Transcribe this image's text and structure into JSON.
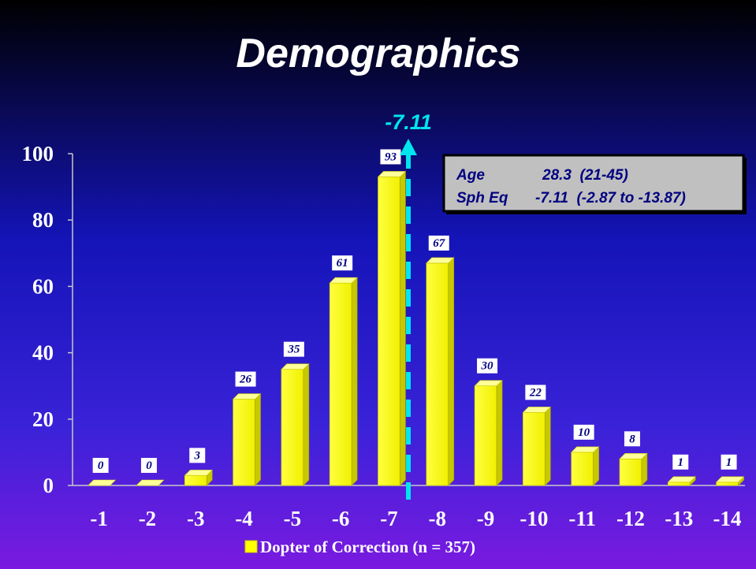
{
  "slide": {
    "title": "Demographics"
  },
  "colors": {
    "bg_top": "#000000",
    "bg_mid": "#1a1ad0",
    "bg_bottom": "#7a1ae0",
    "bar_front": "#ffff00",
    "bar_side": "#c8c800",
    "bar_top": "#ffff99",
    "marker": "#00e5ee",
    "label_text": "#000080"
  },
  "chart_data": {
    "type": "bar",
    "categories": [
      "-1",
      "-2",
      "-3",
      "-4",
      "-5",
      "-6",
      "-7",
      "-8",
      "-9",
      "-10",
      "-11",
      "-12",
      "-13",
      "-14"
    ],
    "series": [
      {
        "name": "Dopter of Correction (n = 357)",
        "values": [
          0,
          0,
          3,
          26,
          35,
          61,
          93,
          67,
          30,
          22,
          10,
          8,
          1,
          1
        ],
        "data_labels": [
          "0",
          "0",
          "3",
          "26",
          "35",
          "61",
          "93",
          "67",
          "30",
          "22",
          "10",
          "8",
          "1",
          "1"
        ]
      }
    ],
    "ylim": [
      0,
      100
    ],
    "yticks": [
      0,
      20,
      40,
      60,
      80,
      100
    ],
    "ytick_labels": [
      "0",
      "20",
      "40",
      "60",
      "80",
      "100"
    ],
    "grid": false,
    "legend": "bottom",
    "marker": {
      "value": -7.11,
      "label": "-7.11",
      "style": "dashed-arrow"
    },
    "annotation_box": {
      "rows": [
        {
          "label": "Age",
          "value": "28.3  (21-45)"
        },
        {
          "label": "Sph Eq",
          "value": "-7.11  (-2.87 to -13.87)"
        }
      ]
    }
  }
}
